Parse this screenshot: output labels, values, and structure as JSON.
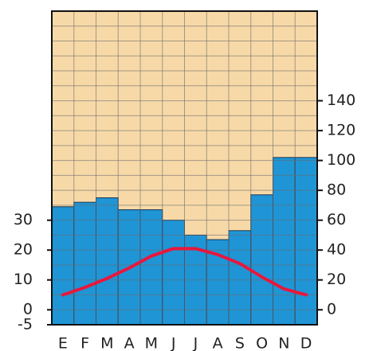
{
  "chart_data": {
    "type": "bar",
    "categories": [
      "E",
      "F",
      "M",
      "A",
      "M",
      "J",
      "J",
      "A",
      "S",
      "O",
      "N",
      "D"
    ],
    "series": [
      {
        "type": "bar",
        "axis": "y2",
        "color": "#1f95d6",
        "values": [
          69,
          72,
          75,
          67,
          67,
          60,
          50,
          47,
          53,
          77,
          102,
          102
        ]
      },
      {
        "type": "line",
        "axis": "y",
        "color": "#e8173d",
        "values": [
          5,
          7.5,
          10.5,
          14,
          18,
          20.5,
          20.5,
          18.5,
          15.5,
          11,
          7,
          5
        ]
      }
    ],
    "ylim": [
      -5,
      100
    ],
    "yticks": [
      -5,
      0,
      10,
      20,
      30
    ],
    "y2lim": [
      -10,
      200
    ],
    "y2ticks": [
      0,
      20,
      40,
      60,
      80,
      100,
      120,
      140
    ],
    "grid": true,
    "background": "#f7d9a8"
  }
}
